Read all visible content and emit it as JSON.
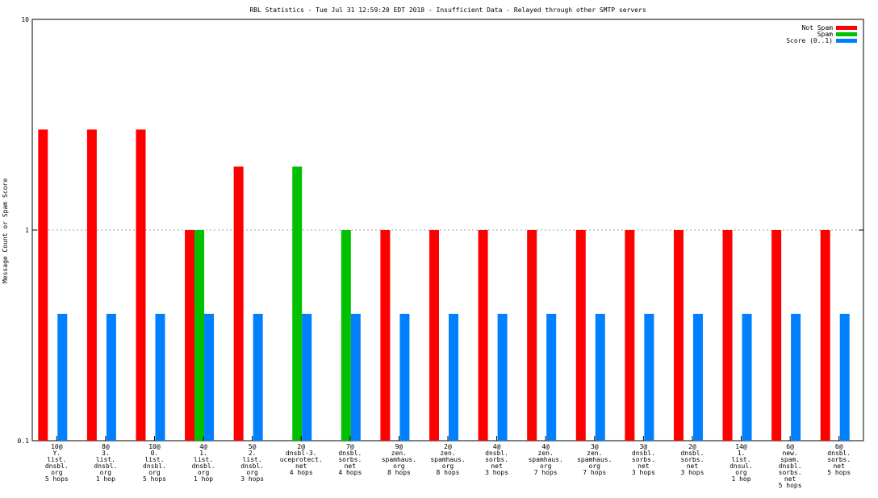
{
  "chart_data": {
    "type": "bar",
    "title": "RBL Statistics - Tue Jul 31 12:59:20 EDT 2018 - Insufficient Data - Relayed through other SMTP servers",
    "ylabel": "Message Count or Spam Score",
    "xlabel": "",
    "yscale": "log",
    "ylim": [
      0.1,
      10
    ],
    "y_ticks": [
      "0.1",
      "1",
      "10"
    ],
    "grid": true,
    "legend_position": "top-right",
    "categories": [
      [
        "10@",
        "Y.",
        "list.",
        "dnsbl.",
        "org",
        "5 hops"
      ],
      [
        "8@",
        "3.",
        "list.",
        "dnsbl.",
        "org",
        "1 hop"
      ],
      [
        "10@",
        "0.",
        "list.",
        "dnsbl.",
        "org",
        "5 hops"
      ],
      [
        "4@",
        "1.",
        "list.",
        "dnsbl.",
        "org",
        "1 hop"
      ],
      [
        "5@",
        "2.",
        "list.",
        "dnsbl.",
        "org",
        "3 hops"
      ],
      [
        "2@",
        "dnsbl-3.",
        "uceprotect.",
        "net",
        "4 hops"
      ],
      [
        "7@",
        "dnsbl.",
        "sorbs.",
        "net",
        "4 hops"
      ],
      [
        "9@",
        "zen.",
        "spamhaus.",
        "org",
        "8 hops"
      ],
      [
        "2@",
        "zen.",
        "spamhaus.",
        "org",
        "8 hops"
      ],
      [
        "4@",
        "dnsbl.",
        "sorbs.",
        "net",
        "3 hops"
      ],
      [
        "4@",
        "zen.",
        "spamhaus.",
        "org",
        "7 hops"
      ],
      [
        "3@",
        "zen.",
        "spamhaus.",
        "org",
        "7 hops"
      ],
      [
        "3@",
        "dnsbl.",
        "sorbs.",
        "net",
        "3 hops"
      ],
      [
        "2@",
        "dnsbl.",
        "sorbs.",
        "net",
        "3 hops"
      ],
      [
        "14@",
        "1.",
        "list.",
        "dnsul.",
        "org",
        "1 hop"
      ],
      [
        "6@",
        "new.",
        "spam.",
        "dnsbl.",
        "sorbs.",
        "net",
        "5 hops"
      ],
      [
        "6@",
        "dnsbl.",
        "sorbs.",
        "net",
        "5 hops"
      ]
    ],
    "series": [
      {
        "name": "Not Spam",
        "color": "#ff0000",
        "values": [
          3,
          3,
          3,
          1,
          2,
          null,
          null,
          1,
          1,
          1,
          1,
          1,
          1,
          1,
          1,
          1,
          1
        ]
      },
      {
        "name": "Spam",
        "color": "#00c000",
        "values": [
          null,
          null,
          null,
          1,
          null,
          2,
          1,
          null,
          null,
          null,
          null,
          null,
          null,
          null,
          null,
          null,
          null
        ]
      },
      {
        "name": "Score (0..1)",
        "color": "#0080ff",
        "values": [
          0.4,
          0.4,
          0.4,
          0.4,
          0.4,
          0.4,
          0.4,
          0.4,
          0.4,
          0.4,
          0.4,
          0.4,
          0.4,
          0.4,
          0.4,
          0.4,
          0.4
        ]
      }
    ]
  }
}
